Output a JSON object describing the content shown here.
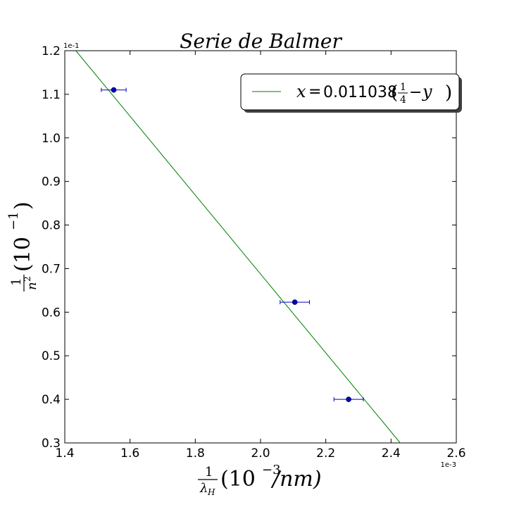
{
  "chart_data": {
    "type": "scatter",
    "title": "Serie de Balmer",
    "xlim": [
      1.4,
      2.6
    ],
    "ylim": [
      0.3,
      1.2
    ],
    "x_ticks": [
      "1.4",
      "1.6",
      "1.8",
      "2.0",
      "2.2",
      "2.4",
      "2.6"
    ],
    "y_ticks": [
      "0.3",
      "0.4",
      "0.5",
      "0.6",
      "0.7",
      "0.8",
      "0.9",
      "1.0",
      "1.1",
      "1.2"
    ],
    "x_tick_values": [
      1.4,
      1.6,
      1.8,
      2.0,
      2.2,
      2.4,
      2.6
    ],
    "y_tick_values": [
      0.3,
      0.4,
      0.5,
      0.6,
      0.7,
      0.8,
      0.9,
      1.0,
      1.1,
      1.2
    ],
    "x_offset": "1e-3",
    "y_offset": "1e-1",
    "xlabel": {
      "frac_num": "1",
      "frac_den": "λ",
      "frac_den_sub": "H",
      "paren_open": "(10",
      "exp": "−3",
      "rest": "/nm)"
    },
    "ylabel": {
      "frac_num": "1",
      "frac_den": "n",
      "frac_den_sup": "2",
      "paren_open": "(10",
      "exp": "−1",
      "rest": ")"
    },
    "points": {
      "x": [
        1.55,
        2.105,
        2.27
      ],
      "y": [
        1.11,
        0.623,
        0.4
      ],
      "xerr": [
        0.038,
        0.045,
        0.045
      ],
      "color": "#0000bf"
    },
    "fit_line": {
      "x": [
        1.4339,
        2.4282
      ],
      "y": [
        1.2,
        0.3
      ],
      "color": "#008000"
    },
    "legend": {
      "position": "top-right",
      "prefix": "x",
      "equals": "=",
      "coefficient": "0.011038",
      "paren_open": "(",
      "frac_num": "1",
      "frac_den": "4",
      "minus": "−",
      "var": "y",
      "paren_close": ")"
    }
  }
}
